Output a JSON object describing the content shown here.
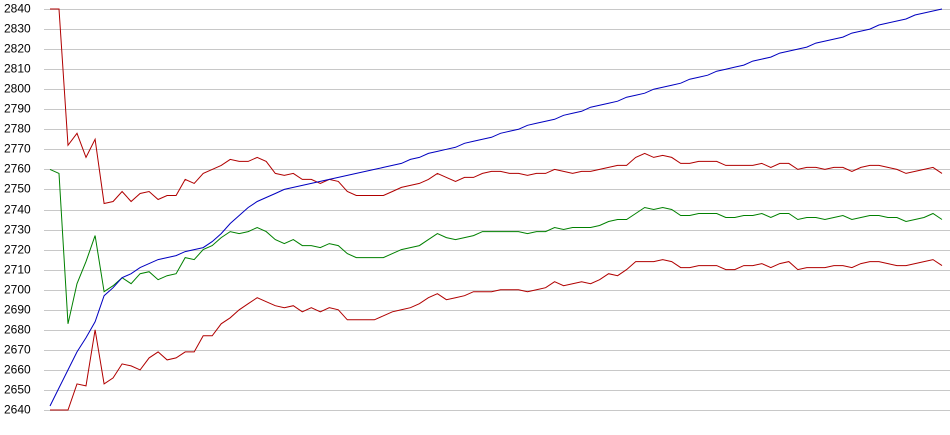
{
  "chart_data": {
    "type": "line",
    "ylim": [
      2640,
      2840
    ],
    "yticks": [
      2640,
      2650,
      2660,
      2670,
      2680,
      2690,
      2700,
      2710,
      2720,
      2730,
      2740,
      2750,
      2760,
      2770,
      2780,
      2790,
      2800,
      2810,
      2820,
      2830,
      2840
    ],
    "grid": true,
    "series": [
      {
        "color": "#b00000",
        "values": [
          2840,
          2840,
          2772,
          2778,
          2766,
          2775,
          2743,
          2744,
          2749,
          2744,
          2748,
          2749,
          2745,
          2747,
          2747,
          2755,
          2753,
          2758,
          2760,
          2762,
          2765,
          2764,
          2764,
          2766,
          2764,
          2758,
          2757,
          2758,
          2755,
          2755,
          2753,
          2755,
          2754,
          2749,
          2747,
          2747,
          2747,
          2747,
          2749,
          2751,
          2752,
          2753,
          2755,
          2758,
          2756,
          2754,
          2756,
          2756,
          2758,
          2759,
          2759,
          2758,
          2758,
          2757,
          2758,
          2758,
          2760,
          2759,
          2758,
          2759,
          2759,
          2760,
          2761,
          2762,
          2762,
          2766,
          2768,
          2766,
          2767,
          2766,
          2763,
          2763,
          2764,
          2764,
          2764,
          2762,
          2762,
          2762,
          2762,
          2763,
          2761,
          2763,
          2763,
          2760,
          2761,
          2761,
          2760,
          2761,
          2761,
          2759,
          2761,
          2762,
          2762,
          2761,
          2760,
          2758,
          2759,
          2760,
          2761,
          2758
        ]
      },
      {
        "color": "#008000",
        "values": [
          2760,
          2758,
          2683,
          2703,
          2714,
          2727,
          2699,
          2702,
          2706,
          2703,
          2708,
          2709,
          2705,
          2707,
          2708,
          2716,
          2715,
          2720,
          2722,
          2726,
          2729,
          2728,
          2729,
          2731,
          2729,
          2725,
          2723,
          2725,
          2722,
          2722,
          2721,
          2723,
          2722,
          2718,
          2716,
          2716,
          2716,
          2716,
          2718,
          2720,
          2721,
          2722,
          2725,
          2728,
          2726,
          2725,
          2726,
          2727,
          2729,
          2729,
          2729,
          2729,
          2729,
          2728,
          2729,
          2729,
          2731,
          2730,
          2731,
          2731,
          2731,
          2732,
          2734,
          2735,
          2735,
          2738,
          2741,
          2740,
          2741,
          2740,
          2737,
          2737,
          2738,
          2738,
          2738,
          2736,
          2736,
          2737,
          2737,
          2738,
          2736,
          2738,
          2738,
          2735,
          2736,
          2736,
          2735,
          2736,
          2737,
          2735,
          2736,
          2737,
          2737,
          2736,
          2736,
          2734,
          2735,
          2736,
          2738,
          2735
        ]
      },
      {
        "color": "#b00000",
        "values": [
          2640,
          2640,
          2640,
          2653,
          2652,
          2680,
          2653,
          2656,
          2663,
          2662,
          2660,
          2666,
          2669,
          2665,
          2666,
          2669,
          2669,
          2677,
          2677,
          2683,
          2686,
          2690,
          2693,
          2696,
          2694,
          2692,
          2691,
          2692,
          2689,
          2691,
          2689,
          2691,
          2690,
          2685,
          2685,
          2685,
          2685,
          2687,
          2689,
          2690,
          2691,
          2693,
          2696,
          2698,
          2695,
          2696,
          2697,
          2699,
          2699,
          2699,
          2700,
          2700,
          2700,
          2699,
          2700,
          2701,
          2704,
          2702,
          2703,
          2704,
          2703,
          2705,
          2708,
          2707,
          2710,
          2714,
          2714,
          2714,
          2715,
          2714,
          2711,
          2711,
          2712,
          2712,
          2712,
          2710,
          2710,
          2712,
          2712,
          2713,
          2711,
          2713,
          2714,
          2710,
          2711,
          2711,
          2711,
          2712,
          2712,
          2711,
          2713,
          2714,
          2714,
          2713,
          2712,
          2712,
          2713,
          2714,
          2715,
          2712
        ]
      },
      {
        "color": "#0000c0",
        "values": [
          2642,
          2651,
          2660,
          2669,
          2676,
          2684,
          2697,
          2701,
          2706,
          2708,
          2711,
          2713,
          2715,
          2716,
          2717,
          2719,
          2720,
          2721,
          2724,
          2728,
          2733,
          2737,
          2741,
          2744,
          2746,
          2748,
          2750,
          2751,
          2752,
          2753,
          2754,
          2755,
          2756,
          2757,
          2758,
          2759,
          2760,
          2761,
          2762,
          2763,
          2765,
          2766,
          2768,
          2769,
          2770,
          2771,
          2773,
          2774,
          2775,
          2776,
          2778,
          2779,
          2780,
          2782,
          2783,
          2784,
          2785,
          2787,
          2788,
          2789,
          2791,
          2792,
          2793,
          2794,
          2796,
          2797,
          2798,
          2800,
          2801,
          2802,
          2803,
          2805,
          2806,
          2807,
          2809,
          2810,
          2811,
          2812,
          2814,
          2815,
          2816,
          2818,
          2819,
          2820,
          2821,
          2823,
          2824,
          2825,
          2826,
          2828,
          2829,
          2830,
          2832,
          2833,
          2834,
          2835,
          2837,
          2838,
          2839,
          2840
        ]
      }
    ]
  }
}
